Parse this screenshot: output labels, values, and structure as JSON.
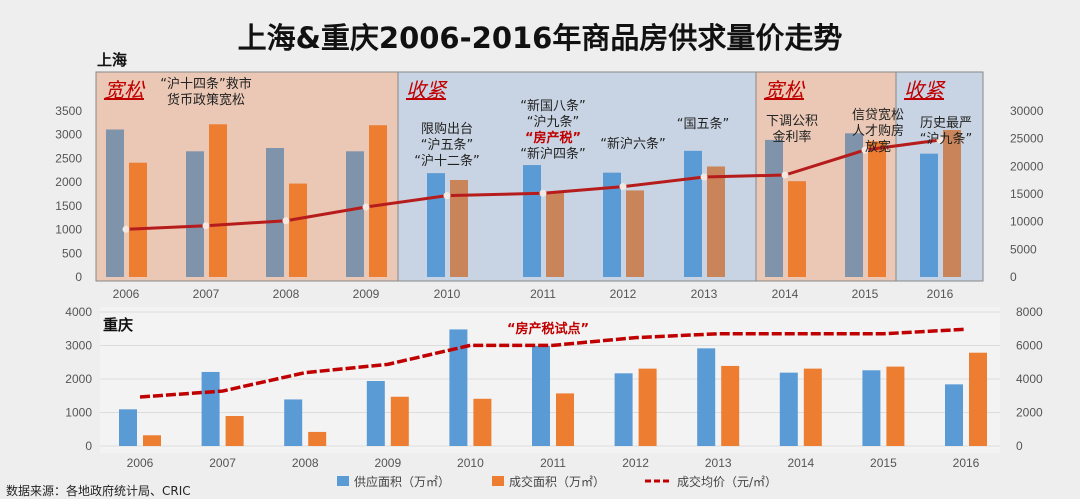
{
  "title": "上海&重庆2006-2016年商品房供求量价走势",
  "source": "数据来源：各地政府统计局、CRIC",
  "colors": {
    "supply": "#5b9bd5",
    "supply_loose": "#7f93ab",
    "sales": "#ed7d31",
    "sales_tight": "#c9845a",
    "price": "#b71c1c",
    "band_loose": "#eac8b5",
    "band_tight": "#c8d4e3"
  },
  "legend": [
    "供应面积（万㎡）",
    "成交面积（万㎡）",
    "成交均价（元/㎡）"
  ],
  "chart_data": [
    {
      "type": "bar",
      "title": "上海",
      "categories": [
        "2006",
        "2007",
        "2008",
        "2009",
        "2010",
        "2011",
        "2012",
        "2013",
        "2014",
        "2015",
        "2016"
      ],
      "ylim": [
        0,
        3500
      ],
      "yticks": [
        "0",
        "500",
        "1000",
        "1500",
        "2000",
        "2500",
        "3000",
        "3500"
      ],
      "y2lim": [
        0,
        30000
      ],
      "y2ticks": [
        "0",
        "5000",
        "10000",
        "15000",
        "20000",
        "25000",
        "30000"
      ],
      "series": [
        {
          "name": "供应面积（万㎡）",
          "values": [
            3110,
            2650,
            2720,
            2650,
            2190,
            2360,
            2200,
            2660,
            2890,
            3030,
            2600
          ]
        },
        {
          "name": "成交面积（万㎡）",
          "values": [
            2410,
            3220,
            1970,
            3200,
            2045,
            1770,
            1825,
            2330,
            2020,
            2860,
            3100
          ]
        },
        {
          "name": "成交均价（元/㎡）",
          "axis": "right",
          "type": "line",
          "values": [
            8620,
            9270,
            10170,
            12650,
            14700,
            15130,
            16330,
            18070,
            18430,
            22950,
            24760
          ]
        }
      ],
      "phases": [
        {
          "label": "宽松",
          "from": "2006",
          "to": "2009",
          "kind": "loose"
        },
        {
          "label": "收紧",
          "from": "2010",
          "to": "2013",
          "kind": "tight"
        },
        {
          "label": "宽松",
          "from": "2014",
          "to": "2015",
          "kind": "loose"
        },
        {
          "label": "收紧",
          "from": "2016",
          "to": "2016",
          "kind": "tight"
        }
      ],
      "annotations": [
        {
          "lines": [
            "“沪十四条”救市",
            "货币政策宽松"
          ]
        },
        {
          "lines": [
            "限购出台",
            "“沪五条”",
            "“沪十二条”"
          ]
        },
        {
          "lines": [
            "“新国八条”",
            "“沪九条”",
            "“房产税”",
            "“新沪四条”"
          ]
        },
        {
          "lines": [
            "“新沪六条”"
          ]
        },
        {
          "lines": [
            "“国五条”"
          ]
        },
        {
          "lines": [
            "下调公积",
            "金利率"
          ]
        },
        {
          "lines": [
            "信贷宽松",
            "人才购房",
            "放宽"
          ]
        },
        {
          "lines": [
            "历史最严",
            "“沪九条”"
          ]
        }
      ]
    },
    {
      "type": "bar",
      "title": "重庆",
      "categories": [
        "2006",
        "2007",
        "2008",
        "2009",
        "2010",
        "2011",
        "2012",
        "2013",
        "2014",
        "2015",
        "2016"
      ],
      "ylim": [
        0,
        4000
      ],
      "yticks": [
        "0",
        "1000",
        "2000",
        "3000",
        "4000"
      ],
      "y2lim": [
        0,
        8000
      ],
      "y2ticks": [
        "0",
        "2000",
        "4000",
        "6000",
        "8000"
      ],
      "series": [
        {
          "name": "供应面积（万㎡）",
          "values": [
            1095,
            2210,
            1390,
            1940,
            3480,
            2985,
            2170,
            2915,
            2190,
            2260,
            1840
          ]
        },
        {
          "name": "成交面积（万㎡）",
          "values": [
            320,
            895,
            420,
            1470,
            1410,
            1570,
            2310,
            2390,
            2310,
            2370,
            2785
          ]
        },
        {
          "name": "成交均价（元/㎡）",
          "axis": "right",
          "type": "line",
          "style": "dashed",
          "values": [
            2925,
            3280,
            4380,
            4875,
            6010,
            6010,
            6470,
            6700,
            6700,
            6700,
            6970
          ]
        }
      ],
      "annotations": [
        {
          "lines": [
            "“房产税试点”"
          ]
        }
      ],
      "legend_position": "bottom"
    }
  ]
}
